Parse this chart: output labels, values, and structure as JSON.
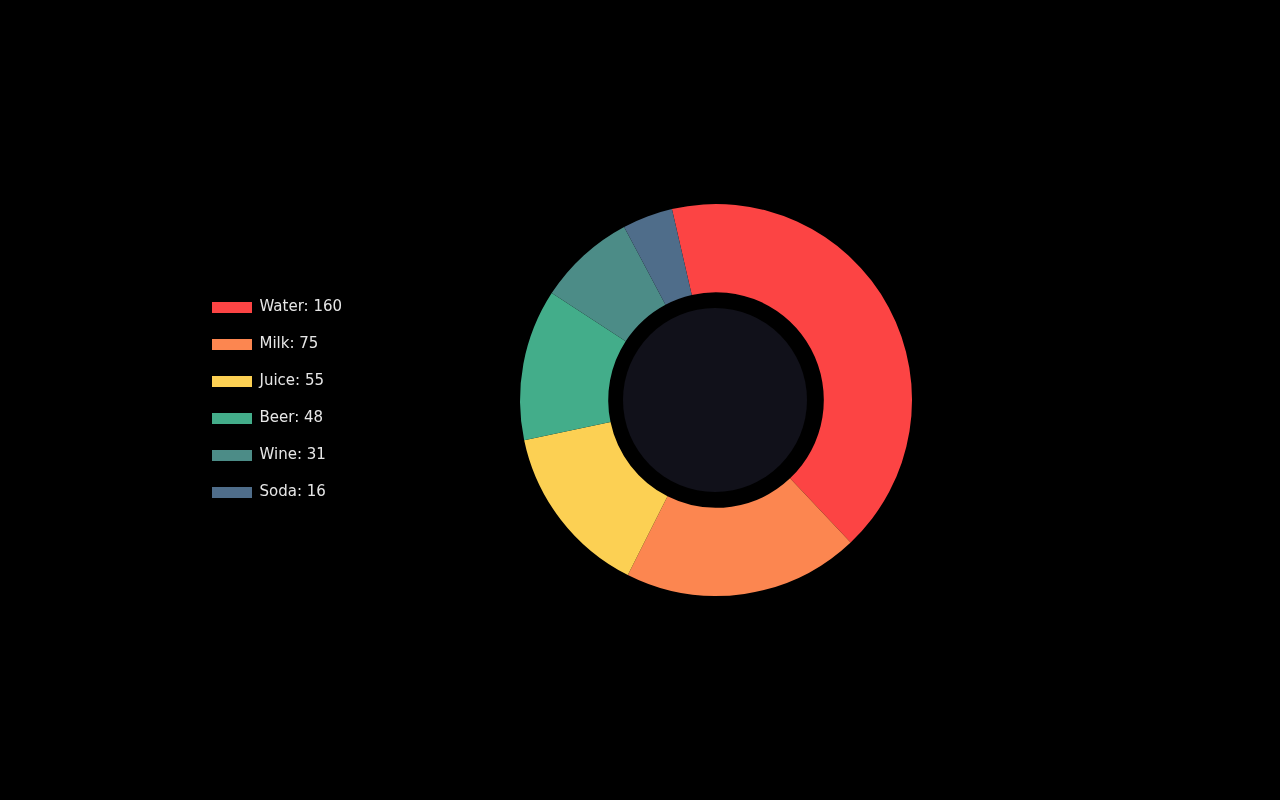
{
  "chart_data": {
    "type": "donut",
    "categories": [
      "Water",
      "Milk",
      "Juice",
      "Beer",
      "Wine",
      "Soda"
    ],
    "values": [
      160,
      75,
      55,
      48,
      31,
      16
    ],
    "value_labels": [
      "160",
      "75",
      "55",
      "48",
      "31",
      "16"
    ],
    "colors": [
      "#fc4444",
      "#fc8650",
      "#fcd053",
      "#43ad8a",
      "#4c8c87",
      "#4f6d8a"
    ],
    "legend": "left"
  }
}
